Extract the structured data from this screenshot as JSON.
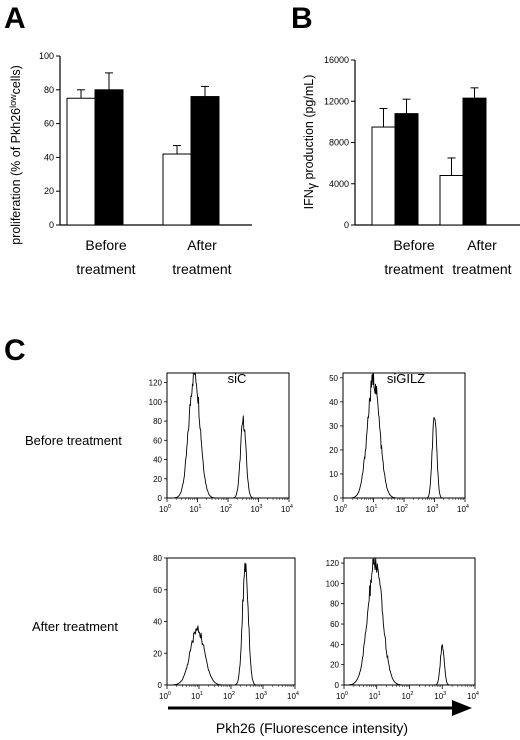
{
  "panel_labels": {
    "a": "A",
    "b": "B",
    "c": "C"
  },
  "colors": {
    "ctrl": "#ffffff",
    "gilz": "#000000",
    "stroke": "#000000"
  },
  "chart_data": [
    {
      "panel": "A",
      "type": "bar",
      "ylabel_pre": "proliferation (% of Pkh26",
      "ylabel_sup": "low",
      "ylabel_post": "cells)",
      "ylim": [
        0,
        100
      ],
      "yticks": [
        0,
        20,
        40,
        60,
        80,
        100
      ],
      "categories": [
        [
          "Before",
          "treatment"
        ],
        [
          "After",
          "treatment"
        ]
      ],
      "series": [
        {
          "fill": "white",
          "values": [
            75,
            42
          ],
          "errors": [
            5,
            5
          ]
        },
        {
          "fill": "black",
          "values": [
            80,
            76
          ],
          "errors": [
            10,
            6
          ]
        }
      ]
    },
    {
      "panel": "B",
      "type": "bar",
      "ylabel_pre": "IFN",
      "ylabel_sub": "γ",
      "ylabel_post": " production (pg/mL)",
      "ylim": [
        0,
        16000
      ],
      "yticks": [
        0,
        4000,
        8000,
        12000,
        16000
      ],
      "categories": [
        [
          "Before",
          "treatment"
        ],
        [
          "After",
          "treatment"
        ]
      ],
      "series": [
        {
          "fill": "white",
          "values": [
            9500,
            4800
          ],
          "errors": [
            1800,
            1700
          ]
        },
        {
          "fill": "black",
          "values": [
            10800,
            12300
          ],
          "errors": [
            1400,
            1000
          ]
        }
      ]
    }
  ],
  "panel_c": {
    "columns": [
      "siC",
      "siGILZ"
    ],
    "rows": [
      "Before treatment",
      "After treatment"
    ],
    "xlabel": "Pkh26 (Fluorescence intensity)",
    "x_decades": [
      0,
      1,
      2,
      3,
      4
    ],
    "plots": [
      {
        "id": "before-siC",
        "yticks": [
          0,
          20,
          40,
          60,
          80,
          100,
          120
        ],
        "ymax": 130,
        "peaks": [
          {
            "center": 0.9,
            "height": 131,
            "width": 0.18
          },
          {
            "center": 2.5,
            "height": 80,
            "width": 0.09
          }
        ]
      },
      {
        "id": "before-siGILZ",
        "yticks": [
          0,
          10,
          20,
          30,
          40,
          50
        ],
        "ymax": 52,
        "peaks": [
          {
            "center": 1.0,
            "height": 49,
            "width": 0.2
          },
          {
            "center": 3.0,
            "height": 36,
            "width": 0.07
          }
        ]
      },
      {
        "id": "after-siC",
        "yticks": [
          0,
          20,
          40,
          60,
          80
        ],
        "ymax": 80,
        "peaks": [
          {
            "center": 0.95,
            "height": 35,
            "width": 0.22
          },
          {
            "center": 2.45,
            "height": 76,
            "width": 0.09
          }
        ]
      },
      {
        "id": "after-siGILZ",
        "yticks": [
          0,
          20,
          40,
          60,
          80,
          100,
          120
        ],
        "ymax": 125,
        "peaks": [
          {
            "center": 0.95,
            "height": 120,
            "width": 0.22
          },
          {
            "center": 3.0,
            "height": 38,
            "width": 0.06
          }
        ]
      }
    ]
  }
}
